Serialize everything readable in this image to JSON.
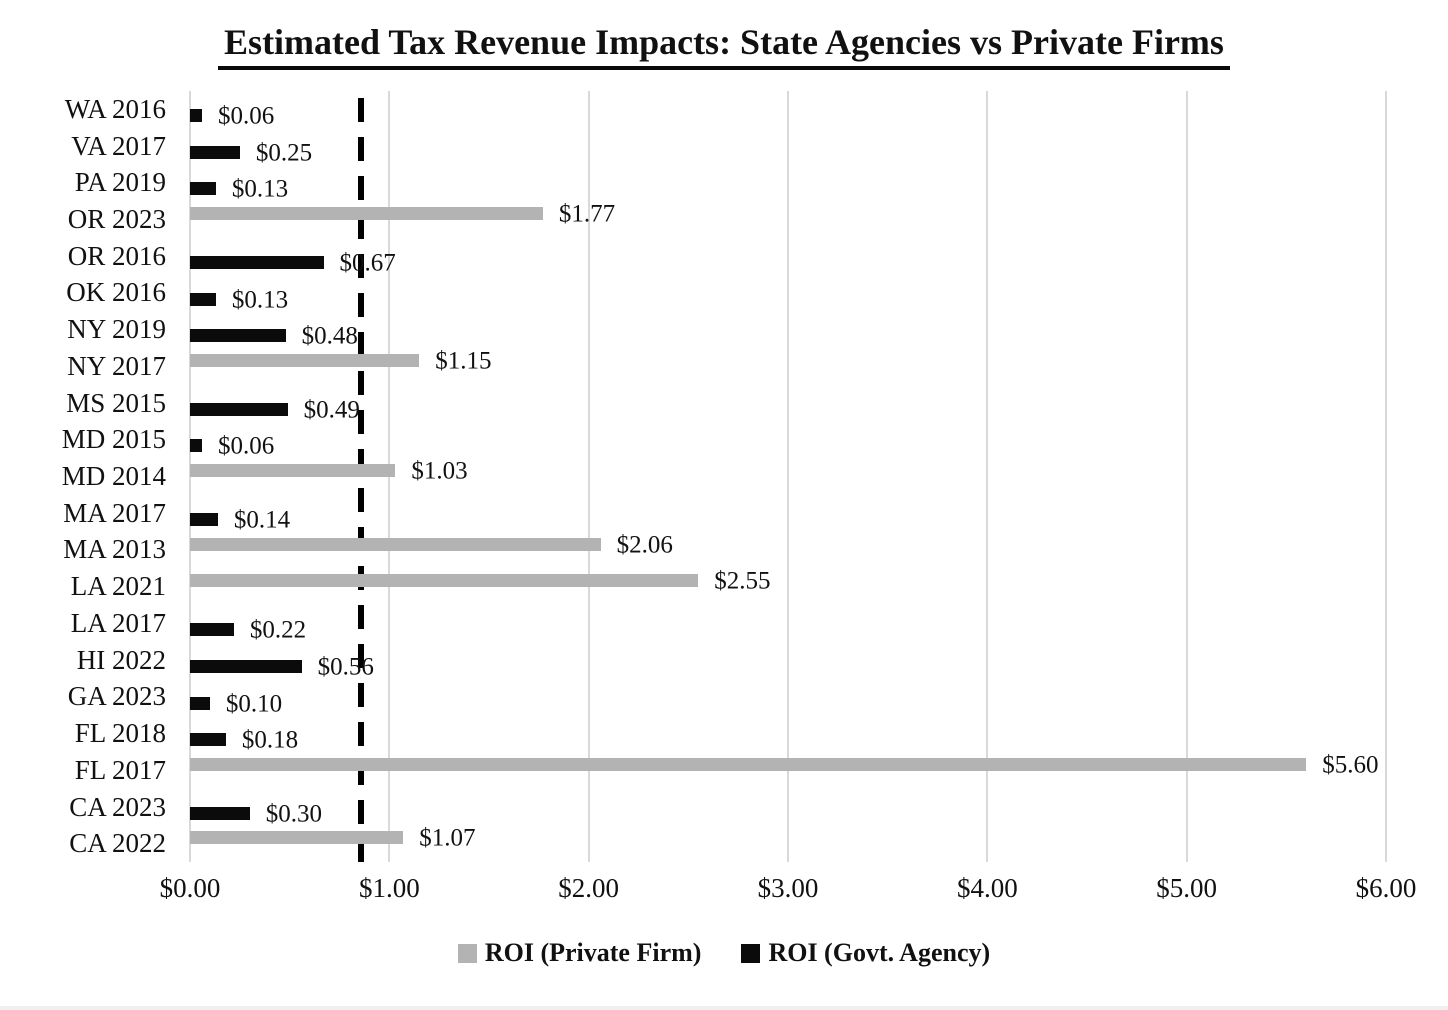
{
  "title": "Estimated Tax Revenue Impacts: State Agencies vs Private Firms",
  "chart_data": {
    "type": "bar",
    "orientation": "horizontal",
    "title": "Estimated Tax Revenue Impacts: State Agencies vs Private Firms",
    "categories": [
      "WA 2016",
      "VA 2017",
      "PA 2019",
      "OR 2023",
      "OR 2016",
      "OK 2016",
      "NY 2019",
      "NY 2017",
      "MS 2015",
      "MD 2015",
      "MD 2014",
      "MA 2017",
      "MA 2013",
      "LA 2021",
      "LA 2017",
      "HI 2022",
      "GA 2023",
      "FL 2018",
      "FL 2017",
      "CA 2023",
      "CA 2022"
    ],
    "series": [
      {
        "name": "ROI (Private Firm)",
        "key": "private",
        "color": "#b3b3b3",
        "values": [
          null,
          null,
          null,
          1.77,
          null,
          null,
          null,
          1.15,
          null,
          null,
          1.03,
          null,
          2.06,
          2.55,
          null,
          null,
          null,
          null,
          5.6,
          null,
          1.07
        ]
      },
      {
        "name": "ROI (Govt. Agency)",
        "key": "govt",
        "color": "#0b0b0b",
        "values": [
          0.06,
          0.25,
          0.13,
          null,
          0.67,
          0.13,
          0.48,
          null,
          0.49,
          0.06,
          null,
          0.14,
          null,
          null,
          0.22,
          0.56,
          0.1,
          0.18,
          null,
          0.3,
          null
        ]
      }
    ],
    "data_labels": [
      "$0.06",
      "$0.25",
      "$0.13",
      "$1.77",
      "$0.67",
      "$0.13",
      "$0.48",
      "$1.15",
      "$0.49",
      "$0.06",
      "$1.03",
      "$0.14",
      "$2.06",
      "$2.55",
      "$0.22",
      "$0.56",
      "$0.10",
      "$0.18",
      "$5.60",
      "$0.30",
      "$1.07"
    ],
    "xlabel": "",
    "ylabel": "",
    "xlim": [
      0,
      6
    ],
    "x_ticks": [
      "$0.00",
      "$1.00",
      "$2.00",
      "$3.00",
      "$4.00",
      "$5.00",
      "$6.00"
    ],
    "x_tick_values": [
      0,
      1,
      2,
      3,
      4,
      5,
      6
    ],
    "reference_line": {
      "value": 0.86,
      "style": "dashed",
      "color": "#000000"
    },
    "grid": "vertical",
    "gridline_color": "#d9d9d9",
    "legend_position": "bottom"
  }
}
